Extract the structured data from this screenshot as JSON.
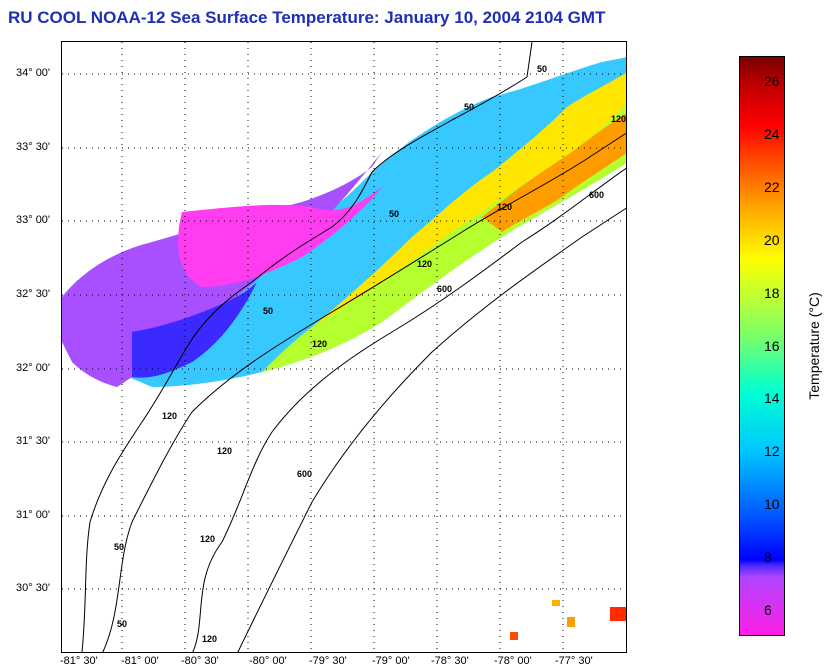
{
  "title": "RU COOL  NOAA-12  Sea Surface Temperature:  January 10, 2004 2104 GMT",
  "lat_ticks": [
    "34° 00'",
    "33° 30'",
    "33° 00'",
    "32° 30'",
    "32° 00'",
    "31° 30'",
    "31° 00'",
    "30° 30'"
  ],
  "lon_ticks": [
    "-81° 30'",
    "-81° 00'",
    "-80° 30'",
    "-80° 00'",
    "-79° 30'",
    "-79° 00'",
    "-78° 30'",
    "-78° 00'",
    "-77° 30'"
  ],
  "contour_labels": [
    "50",
    "50",
    "50",
    "50",
    "120",
    "120",
    "120",
    "120",
    "120",
    "600",
    "600",
    "600",
    "120",
    "50",
    "120",
    "120",
    "50"
  ],
  "colorbar": {
    "label": "Temperature (°C)",
    "ticks": [
      "26",
      "24",
      "22",
      "20",
      "18",
      "16",
      "14",
      "12",
      "10",
      "8",
      "6"
    ],
    "range": [
      5,
      27
    ]
  }
}
